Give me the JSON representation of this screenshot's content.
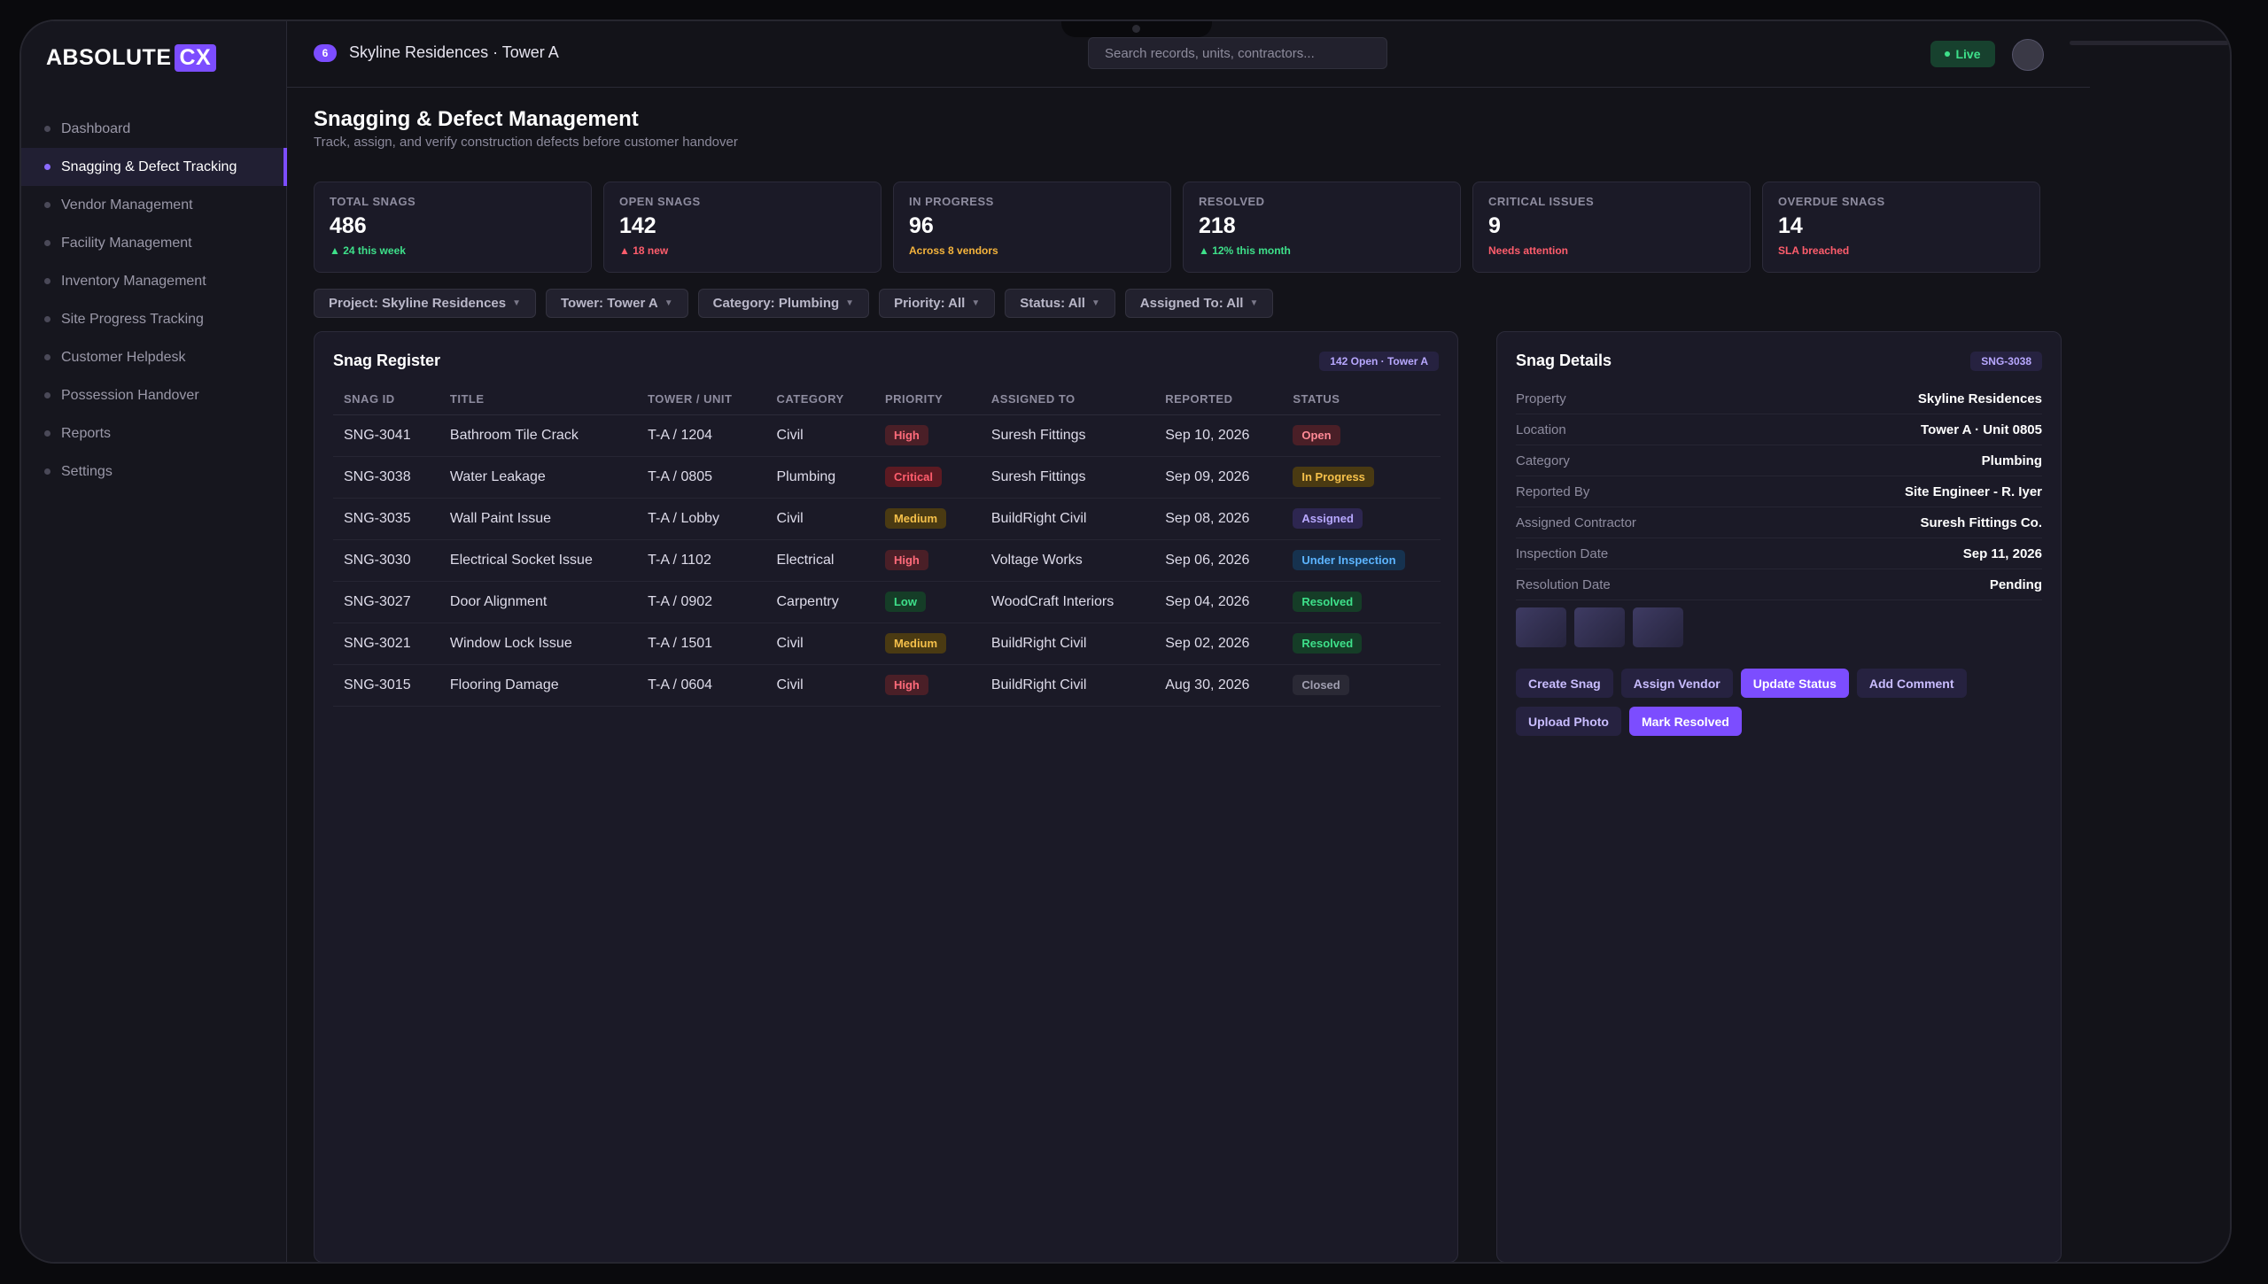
{
  "brand": {
    "name": "ABSOLUTE",
    "suffix": "CX"
  },
  "sidebar": {
    "items": [
      {
        "label": "Dashboard",
        "active": false
      },
      {
        "label": "Snagging & Defect Tracking",
        "active": true
      },
      {
        "label": "Vendor Management",
        "active": false
      },
      {
        "label": "Facility Management",
        "active": false
      },
      {
        "label": "Inventory Management",
        "active": false
      },
      {
        "label": "Site Progress Tracking",
        "active": false
      },
      {
        "label": "Customer Helpdesk",
        "active": false
      },
      {
        "label": "Possession Handover",
        "active": false
      },
      {
        "label": "Reports",
        "active": false
      },
      {
        "label": "Settings",
        "active": false
      }
    ]
  },
  "topbar": {
    "badge": "6",
    "context": "Skyline Residences · Tower A",
    "search_placeholder": "Search records, units, contractors...",
    "live_label": "Live"
  },
  "page": {
    "title": "Snagging & Defect Management",
    "subtitle": "Track, assign, and verify construction defects before customer handover"
  },
  "kpis": [
    {
      "label": "TOTAL SNAGS",
      "value": "486",
      "sub": "▲ 24 this week",
      "sub_color": "#3ee08a"
    },
    {
      "label": "OPEN SNAGS",
      "value": "142",
      "sub": "▲ 18 new",
      "sub_color": "#ff5d6c"
    },
    {
      "label": "IN PROGRESS",
      "value": "96",
      "sub": "Across 8 vendors",
      "sub_color": "#f5b43c"
    },
    {
      "label": "RESOLVED",
      "value": "218",
      "sub": "▲ 12% this month",
      "sub_color": "#3ee08a"
    },
    {
      "label": "CRITICAL ISSUES",
      "value": "9",
      "sub": "Needs attention",
      "sub_color": "#ff5d6c"
    },
    {
      "label": "OVERDUE SNAGS",
      "value": "14",
      "sub": "SLA breached",
      "sub_color": "#ff5d6c"
    }
  ],
  "filters": [
    "Project: Skyline Residences",
    "Tower: Tower A",
    "Category: Plumbing",
    "Priority: All",
    "Status: All",
    "Assigned To: All"
  ],
  "register": {
    "title": "Snag Register",
    "badge": "142 Open · Tower A",
    "columns": [
      "SNAG ID",
      "TITLE",
      "TOWER / UNIT",
      "CATEGORY",
      "PRIORITY",
      "ASSIGNED TO",
      "REPORTED",
      "STATUS"
    ],
    "rows": [
      {
        "id": "SNG-3041",
        "title": "Bathroom Tile Crack",
        "unit": "T-A / 1204",
        "category": "Civil",
        "priority": "High",
        "assigned": "Suresh Fittings",
        "reported": "Sep 10, 2026",
        "status": "Open"
      },
      {
        "id": "SNG-3038",
        "title": "Water Leakage",
        "unit": "T-A / 0805",
        "category": "Plumbing",
        "priority": "Critical",
        "assigned": "Suresh Fittings",
        "reported": "Sep 09, 2026",
        "status": "In Progress"
      },
      {
        "id": "SNG-3035",
        "title": "Wall Paint Issue",
        "unit": "T-A / Lobby",
        "category": "Civil",
        "priority": "Medium",
        "assigned": "BuildRight Civil",
        "reported": "Sep 08, 2026",
        "status": "Assigned"
      },
      {
        "id": "SNG-3030",
        "title": "Electrical Socket Issue",
        "unit": "T-A / 1102",
        "category": "Electrical",
        "priority": "High",
        "assigned": "Voltage Works",
        "reported": "Sep 06, 2026",
        "status": "Under Inspection"
      },
      {
        "id": "SNG-3027",
        "title": "Door Alignment",
        "unit": "T-A / 0902",
        "category": "Carpentry",
        "priority": "Low",
        "assigned": "WoodCraft Interiors",
        "reported": "Sep 04, 2026",
        "status": "Resolved"
      },
      {
        "id": "SNG-3021",
        "title": "Window Lock Issue",
        "unit": "T-A / 1501",
        "category": "Civil",
        "priority": "Medium",
        "assigned": "BuildRight Civil",
        "reported": "Sep 02, 2026",
        "status": "Resolved"
      },
      {
        "id": "SNG-3015",
        "title": "Flooring Damage",
        "unit": "T-A / 0604",
        "category": "Civil",
        "priority": "High",
        "assigned": "BuildRight Civil",
        "reported": "Aug 30, 2026",
        "status": "Closed"
      }
    ]
  },
  "details": {
    "title": "Snag Details",
    "badge": "SNG-3038",
    "fields": [
      {
        "key": "Property",
        "value": "Skyline Residences"
      },
      {
        "key": "Location",
        "value": "Tower A · Unit 0805"
      },
      {
        "key": "Category",
        "value": "Plumbing"
      },
      {
        "key": "Reported By",
        "value": "Site Engineer - R. Iyer"
      },
      {
        "key": "Assigned Contractor",
        "value": "Suresh Fittings Co."
      },
      {
        "key": "Inspection Date",
        "value": "Sep 11, 2026"
      },
      {
        "key": "Resolution Date",
        "value": "Pending"
      }
    ],
    "actions": [
      {
        "label": "Create Snag",
        "primary": false
      },
      {
        "label": "Assign Vendor",
        "primary": false
      },
      {
        "label": "Update Status",
        "primary": true
      },
      {
        "label": "Add Comment",
        "primary": false
      },
      {
        "label": "Upload Photo",
        "primary": false
      },
      {
        "label": "Mark Resolved",
        "primary": true
      }
    ]
  },
  "colors": {
    "accent": "#7c4dff",
    "priority": {
      "High": {
        "bg": "#4a1f27",
        "fg": "#ff6b7a"
      },
      "Critical": {
        "bg": "#5c1a22",
        "fg": "#ff5d6c"
      },
      "Medium": {
        "bg": "#4a3a12",
        "fg": "#f5c04a"
      },
      "Low": {
        "bg": "#153d27",
        "fg": "#3ee08a"
      }
    },
    "status": {
      "Open": {
        "bg": "#4a1f27",
        "fg": "#ff8a96"
      },
      "In Progress": {
        "bg": "#4a3a12",
        "fg": "#f5c04a"
      },
      "Assigned": {
        "bg": "#2d2650",
        "fg": "#b8a8ff"
      },
      "Under Inspection": {
        "bg": "#16324f",
        "fg": "#5cb4ff"
      },
      "Resolved": {
        "bg": "#153d27",
        "fg": "#3ee08a"
      },
      "Closed": {
        "bg": "#2a2935",
        "fg": "#a09eb0"
      }
    }
  }
}
